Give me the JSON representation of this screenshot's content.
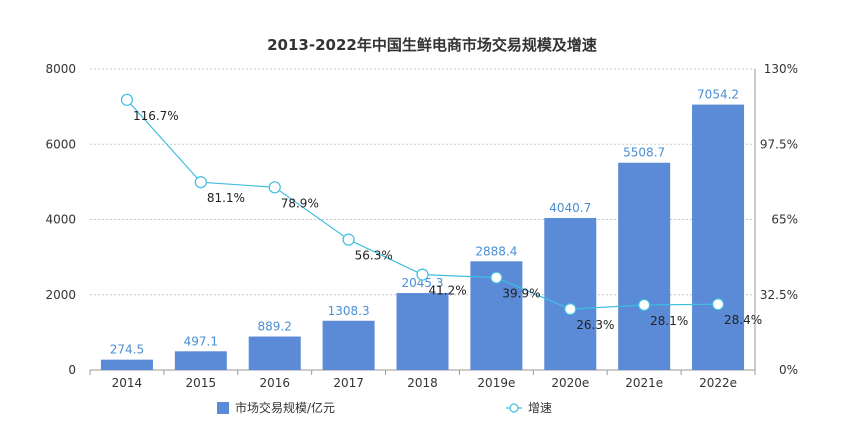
{
  "chart_data": {
    "type": "bar",
    "title": "2013-2022年中国生鲜电商市场交易规模及增速",
    "categories": [
      "2014",
      "2015",
      "2016",
      "2017",
      "2018",
      "2019e",
      "2020e",
      "2021e",
      "2022e"
    ],
    "series": [
      {
        "name": "市场交易规模/亿元",
        "type": "bar",
        "axis": "left",
        "color": "#5b8ad6",
        "values": [
          274.5,
          497.1,
          889.2,
          1308.3,
          2045.3,
          2888.4,
          4040.7,
          5508.7,
          7054.2
        ],
        "labels": [
          "274.5",
          "497.1",
          "889.2",
          "1308.3",
          "2045.3",
          "2888.4",
          "4040.7",
          "5508.7",
          "7054.2"
        ]
      },
      {
        "name": "增速",
        "type": "line",
        "axis": "right",
        "color": "#3fbfe0",
        "values": [
          116.7,
          81.1,
          78.9,
          56.3,
          41.2,
          39.9,
          26.3,
          28.1,
          28.4
        ],
        "labels": [
          "116.7%",
          "81.1%",
          "78.9%",
          "56.3%",
          "41.2%",
          "39.9%",
          "26.3%",
          "28.1%",
          "28.4%"
        ]
      }
    ],
    "y_left": {
      "ylim": [
        0,
        8000
      ],
      "ticks": [
        "0",
        "2000",
        "4000",
        "6000",
        "8000"
      ]
    },
    "y_right": {
      "ylim": [
        0,
        130
      ],
      "ticks": [
        "0%",
        "32.5%",
        "65%",
        "97.5%",
        "130%"
      ]
    },
    "grid": true,
    "legend_position": "bottom"
  }
}
